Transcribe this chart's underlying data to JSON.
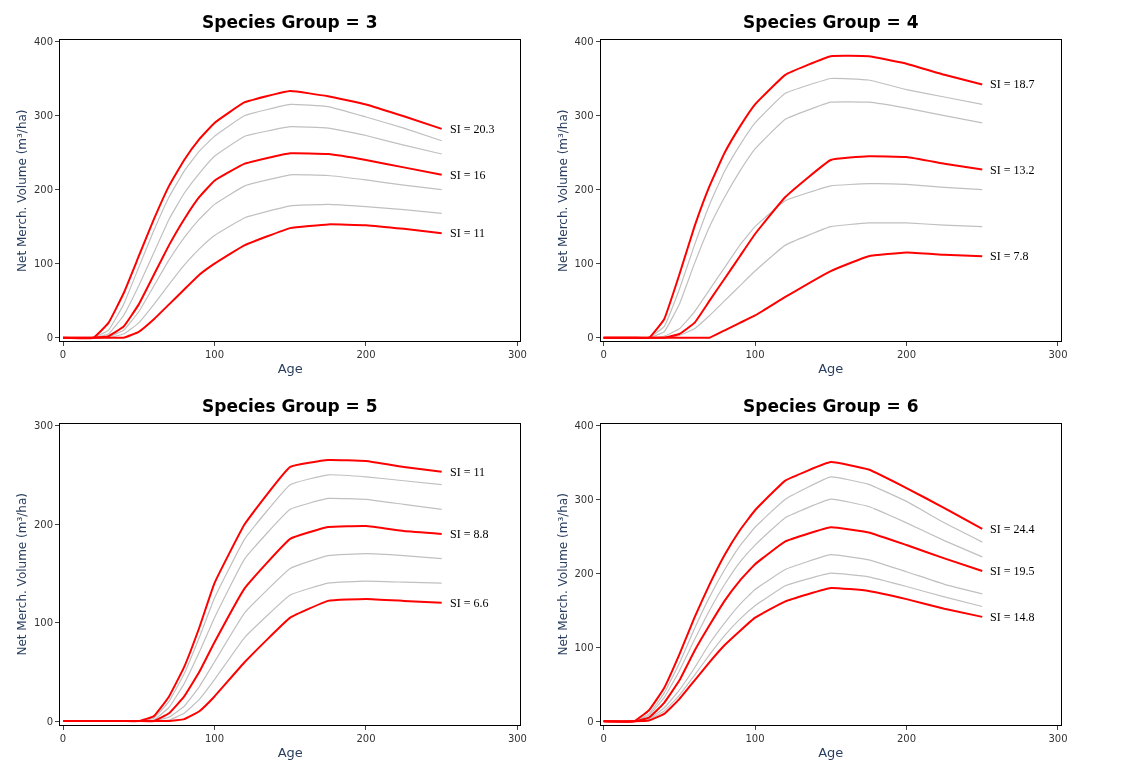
{
  "chart_data": [
    {
      "type": "line",
      "title": "Species Group = 3",
      "xlabel": "Age",
      "ylabel": "Net Merch. Volume (m³/ha)",
      "xlim": [
        -2,
        302
      ],
      "ylim": [
        -5,
        402
      ],
      "xticks": [
        0,
        100,
        200,
        300
      ],
      "yticks": [
        0,
        100,
        200,
        300,
        400
      ],
      "grid": false,
      "legend": false,
      "marker": "none",
      "line_style": "solid",
      "x": [
        0,
        20,
        30,
        40,
        50,
        60,
        70,
        80,
        90,
        100,
        120,
        150,
        175,
        200,
        225,
        250
      ],
      "series": [
        {
          "color": "#c0c0c0",
          "values": [
            0,
            0,
            10,
            45,
            95,
            145,
            190,
            225,
            252,
            272,
            300,
            315,
            312,
            298,
            283,
            266
          ]
        },
        {
          "color": "#c0c0c0",
          "values": [
            0,
            0,
            5,
            30,
            70,
            115,
            160,
            195,
            222,
            245,
            272,
            285,
            283,
            273,
            260,
            248
          ]
        },
        {
          "color": "#c0c0c0",
          "values": [
            0,
            0,
            1,
            10,
            35,
            70,
            105,
            135,
            160,
            180,
            205,
            220,
            219,
            213,
            206,
            200
          ]
        },
        {
          "color": "#c0c0c0",
          "values": [
            0,
            0,
            0,
            5,
            20,
            45,
            72,
            98,
            120,
            138,
            162,
            178,
            180,
            177,
            173,
            168
          ]
        },
        {
          "name": "SI = 20.3",
          "color": "#ff0000",
          "values": [
            0,
            0,
            20,
            60,
            110,
            160,
            205,
            240,
            268,
            290,
            318,
            333,
            326,
            315,
            299,
            282
          ]
        },
        {
          "name": "SI = 16",
          "color": "#ff0000",
          "values": [
            0,
            0,
            2,
            15,
            45,
            85,
            125,
            160,
            190,
            212,
            235,
            249,
            248,
            240,
            230,
            220
          ]
        },
        {
          "name": "SI = 11",
          "color": "#ff0000",
          "values": [
            0,
            0,
            0,
            0,
            8,
            25,
            45,
            65,
            85,
            100,
            125,
            148,
            153,
            152,
            147,
            141
          ]
        }
      ]
    },
    {
      "type": "line",
      "title": "Species Group = 4",
      "xlabel": "Age",
      "ylabel": "Net Merch. Volume (m³/ha)",
      "xlim": [
        -2,
        302
      ],
      "ylim": [
        -5,
        402
      ],
      "xticks": [
        0,
        100,
        200,
        300
      ],
      "yticks": [
        0,
        100,
        200,
        300,
        400
      ],
      "grid": false,
      "legend": false,
      "marker": "none",
      "line_style": "solid",
      "x": [
        0,
        20,
        30,
        40,
        50,
        60,
        70,
        80,
        90,
        100,
        120,
        150,
        175,
        200,
        225,
        250
      ],
      "series": [
        {
          "color": "#c0c0c0",
          "values": [
            0,
            0,
            0,
            15,
            65,
            125,
            180,
            225,
            260,
            290,
            330,
            350,
            348,
            335,
            325,
            315
          ]
        },
        {
          "color": "#c0c0c0",
          "values": [
            0,
            0,
            0,
            8,
            45,
            100,
            150,
            190,
            225,
            255,
            295,
            318,
            318,
            310,
            300,
            290
          ]
        },
        {
          "color": "#c0c0c0",
          "values": [
            0,
            0,
            0,
            2,
            12,
            35,
            65,
            95,
            125,
            150,
            185,
            205,
            208,
            207,
            203,
            200
          ]
        },
        {
          "color": "#c0c0c0",
          "values": [
            0,
            0,
            0,
            0,
            3,
            12,
            30,
            50,
            70,
            90,
            125,
            150,
            155,
            155,
            152,
            150
          ]
        },
        {
          "name": "SI = 18.7",
          "color": "#ff0000",
          "values": [
            0,
            0,
            0,
            25,
            85,
            150,
            205,
            250,
            285,
            315,
            355,
            380,
            380,
            370,
            355,
            342
          ]
        },
        {
          "name": "SI = 13.2",
          "color": "#ff0000",
          "values": [
            0,
            0,
            0,
            0,
            5,
            20,
            50,
            80,
            110,
            140,
            190,
            240,
            245,
            244,
            235,
            227
          ]
        },
        {
          "name": "SI = 7.8",
          "color": "#ff0000",
          "values": [
            0,
            0,
            0,
            0,
            0,
            0,
            0,
            10,
            20,
            30,
            55,
            90,
            110,
            115,
            112,
            110
          ]
        }
      ]
    },
    {
      "type": "line",
      "title": "Species Group = 5",
      "xlabel": "Age",
      "ylabel": "Net Merch. Volume (m³/ha)",
      "xlim": [
        -2,
        302
      ],
      "ylim": [
        -4,
        302
      ],
      "xticks": [
        0,
        100,
        200,
        300
      ],
      "yticks": [
        0,
        100,
        200,
        300
      ],
      "grid": false,
      "legend": false,
      "marker": "none",
      "line_style": "solid",
      "x": [
        0,
        20,
        30,
        40,
        50,
        60,
        70,
        80,
        90,
        100,
        120,
        150,
        175,
        200,
        225,
        250
      ],
      "series": [
        {
          "color": "#c0c0c0",
          "values": [
            null,
            null,
            null,
            null,
            0,
            3,
            20,
            48,
            85,
            125,
            185,
            240,
            250,
            248,
            244,
            240
          ]
        },
        {
          "color": "#c0c0c0",
          "values": [
            null,
            null,
            null,
            null,
            0,
            1,
            14,
            38,
            70,
            105,
            165,
            215,
            226,
            225,
            220,
            215
          ]
        },
        {
          "color": "#c0c0c0",
          "values": [
            null,
            null,
            null,
            null,
            0,
            0,
            4,
            15,
            35,
            60,
            110,
            155,
            168,
            170,
            168,
            165
          ]
        },
        {
          "color": "#c0c0c0",
          "values": [
            null,
            null,
            null,
            null,
            0,
            0,
            1,
            8,
            22,
            42,
            85,
            128,
            140,
            142,
            141,
            140
          ]
        },
        {
          "name": "SI = 11",
          "color": "#ff0000",
          "values": [
            0,
            0,
            0,
            0,
            0,
            5,
            25,
            55,
            95,
            140,
            200,
            258,
            265,
            264,
            258,
            253
          ]
        },
        {
          "name": "SI = 8.8",
          "color": "#ff0000",
          "values": [
            0,
            0,
            0,
            0,
            0,
            0,
            8,
            25,
            50,
            80,
            135,
            185,
            197,
            198,
            193,
            190
          ]
        },
        {
          "name": "SI = 6.6",
          "color": "#ff0000",
          "values": [
            0,
            0,
            0,
            0,
            0,
            0,
            0,
            2,
            10,
            25,
            60,
            105,
            122,
            124,
            122,
            120
          ]
        }
      ]
    },
    {
      "type": "line",
      "title": "Species Group = 6",
      "xlabel": "Age",
      "ylabel": "Net Merch. Volume (m³/ha)",
      "xlim": [
        -2,
        302
      ],
      "ylim": [
        -5,
        402
      ],
      "xticks": [
        0,
        100,
        200,
        300
      ],
      "yticks": [
        0,
        100,
        200,
        300,
        400
      ],
      "grid": false,
      "legend": false,
      "marker": "none",
      "line_style": "solid",
      "x": [
        0,
        20,
        30,
        40,
        50,
        60,
        70,
        80,
        90,
        100,
        120,
        150,
        175,
        200,
        225,
        250
      ],
      "series": [
        {
          "color": "#c0c0c0",
          "values": [
            0,
            0,
            10,
            38,
            78,
            125,
            168,
            205,
            237,
            262,
            300,
            330,
            320,
            297,
            268,
            242
          ]
        },
        {
          "color": "#c0c0c0",
          "values": [
            0,
            0,
            8,
            32,
            68,
            110,
            150,
            185,
            215,
            238,
            275,
            300,
            290,
            268,
            244,
            222
          ]
        },
        {
          "color": "#c0c0c0",
          "values": [
            0,
            0,
            3,
            18,
            42,
            72,
            105,
            133,
            158,
            178,
            205,
            225,
            218,
            202,
            185,
            172
          ]
        },
        {
          "color": "#c0c0c0",
          "values": [
            0,
            0,
            2,
            14,
            35,
            62,
            90,
            116,
            138,
            156,
            183,
            200,
            195,
            182,
            168,
            155
          ]
        },
        {
          "name": "SI = 24.4",
          "color": "#ff0000",
          "values": [
            0,
            0,
            15,
            45,
            90,
            140,
            185,
            225,
            258,
            285,
            325,
            350,
            340,
            315,
            288,
            260
          ]
        },
        {
          "name": "SI = 19.5",
          "color": "#ff0000",
          "values": [
            0,
            0,
            5,
            25,
            55,
            95,
            130,
            163,
            190,
            212,
            243,
            262,
            255,
            238,
            220,
            203
          ]
        },
        {
          "name": "SI = 14.8",
          "color": "#ff0000",
          "values": [
            0,
            0,
            1,
            10,
            30,
            55,
            80,
            103,
            122,
            140,
            162,
            180,
            176,
            165,
            152,
            141
          ]
        }
      ]
    }
  ]
}
